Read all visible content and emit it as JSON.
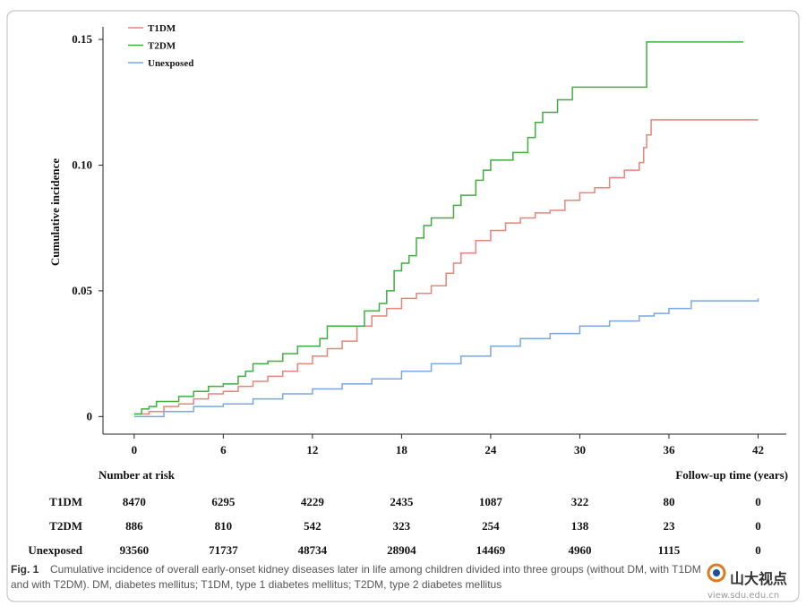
{
  "chart_data": {
    "type": "step",
    "ylabel": "Cumulative incidence",
    "xlabel": "Follow-up time (years)",
    "xlim": [
      -2.1,
      43.9
    ],
    "ylim": [
      -0.007,
      0.155
    ],
    "xticks": [
      0,
      6,
      12,
      18,
      24,
      30,
      36,
      42
    ],
    "yticks": [
      0,
      0.05,
      {
        "value": 0.1,
        "label": "0.10"
      },
      0.15
    ],
    "legend": "upper left",
    "series": [
      {
        "name": "T1DM",
        "color": "#e8847a",
        "x": [
          0,
          1,
          2,
          3,
          4,
          5,
          6,
          7,
          8,
          9,
          10,
          11,
          12,
          13,
          14,
          15,
          16,
          17,
          18,
          19,
          20,
          21,
          21.5,
          22,
          23,
          24,
          25,
          26,
          27,
          28,
          29,
          30,
          31,
          32,
          33,
          34,
          34.3,
          34.5,
          34.8,
          42
        ],
        "values": [
          0.001,
          0.002,
          0.004,
          0.005,
          0.007,
          0.009,
          0.01,
          0.012,
          0.014,
          0.016,
          0.018,
          0.021,
          0.024,
          0.027,
          0.03,
          0.036,
          0.04,
          0.043,
          0.047,
          0.049,
          0.052,
          0.057,
          0.061,
          0.065,
          0.07,
          0.074,
          0.077,
          0.079,
          0.081,
          0.082,
          0.086,
          0.089,
          0.091,
          0.095,
          0.098,
          0.101,
          0.107,
          0.112,
          0.118,
          0.118
        ]
      },
      {
        "name": "T2DM",
        "color": "#3fae3f",
        "x": [
          0,
          0.5,
          1,
          1.5,
          3,
          4,
          5,
          6,
          7,
          7.5,
          8,
          9,
          10,
          11,
          12.5,
          13,
          15,
          15.5,
          16.5,
          17,
          17.5,
          18,
          18.5,
          19,
          19.5,
          20,
          21.5,
          22,
          23,
          23.5,
          24,
          25.5,
          26.5,
          27,
          27.5,
          28.5,
          29.5,
          34,
          34.5,
          41
        ],
        "values": [
          0.001,
          0.003,
          0.004,
          0.006,
          0.008,
          0.01,
          0.012,
          0.013,
          0.016,
          0.018,
          0.021,
          0.022,
          0.025,
          0.028,
          0.031,
          0.036,
          0.036,
          0.042,
          0.045,
          0.05,
          0.058,
          0.061,
          0.064,
          0.071,
          0.076,
          0.079,
          0.084,
          0.088,
          0.094,
          0.098,
          0.102,
          0.105,
          0.111,
          0.117,
          0.121,
          0.126,
          0.131,
          0.131,
          0.149,
          0.149
        ]
      },
      {
        "name": "Unexposed",
        "color": "#7ba7e0",
        "x": [
          0,
          2,
          4,
          6,
          8,
          10,
          12,
          14,
          16,
          18,
          20,
          22,
          24,
          26,
          28,
          30,
          32,
          34,
          35,
          36,
          37.5,
          42
        ],
        "values": [
          0.0,
          0.002,
          0.004,
          0.005,
          0.007,
          0.009,
          0.011,
          0.013,
          0.015,
          0.018,
          0.021,
          0.024,
          0.028,
          0.031,
          0.033,
          0.036,
          0.038,
          0.04,
          0.041,
          0.043,
          0.046,
          0.047
        ]
      }
    ],
    "risk_table": {
      "title": "Number at risk",
      "rows": [
        {
          "label": "T1DM",
          "values": [
            8470,
            6295,
            4229,
            2435,
            1087,
            322,
            80,
            0
          ]
        },
        {
          "label": "T2DM",
          "values": [
            886,
            810,
            542,
            323,
            254,
            138,
            23,
            0
          ]
        },
        {
          "label": "Unexposed",
          "values": [
            93560,
            71737,
            48734,
            28904,
            14469,
            4960,
            1115,
            0
          ]
        }
      ]
    }
  },
  "caption": {
    "label": "Fig. 1",
    "line1": "Cumulative incidence of overall early-onset kidney diseases later in life among children divided into three groups (without DM, with T1DM",
    "line2": "and with T2DM). DM, diabetes mellitus; T1DM, type 1 diabetes mellitus; T2DM, type 2 diabetes mellitus"
  },
  "watermark": {
    "brand": "山大视点",
    "url": "view.sdu.edu.cn"
  }
}
